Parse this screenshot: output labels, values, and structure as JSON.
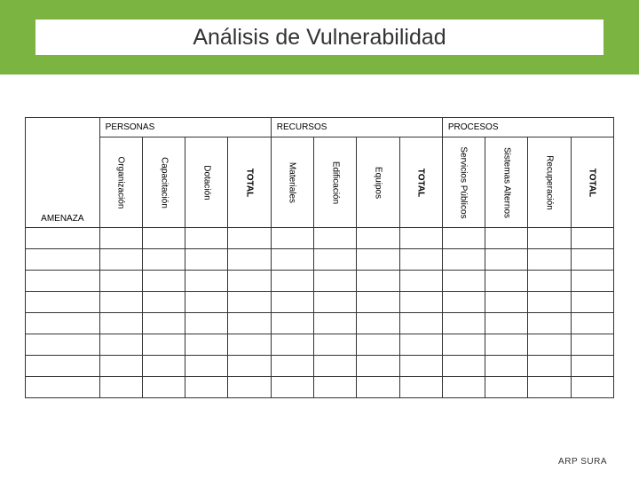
{
  "colors": {
    "band": "#7bb441",
    "border": "#333333",
    "background": "#ffffff",
    "text": "#000000"
  },
  "title": "Análisis de Vulnerabilidad",
  "groups": [
    {
      "label": "PERSONAS"
    },
    {
      "label": "RECURSOS"
    },
    {
      "label": "PROCESOS"
    }
  ],
  "row_label": "AMENAZA",
  "subheaders": {
    "personas": [
      "Organización",
      "Capacitación",
      "Dotación",
      "TOTAL"
    ],
    "recursos": [
      "Materiales",
      "Edificación",
      "Equipos",
      "TOTAL"
    ],
    "procesos": [
      "Servicios Públicos",
      "Sistemas Alternos",
      "Recuperación",
      "TOTAL"
    ]
  },
  "data_rows": 8,
  "footer": "ARP SURA"
}
